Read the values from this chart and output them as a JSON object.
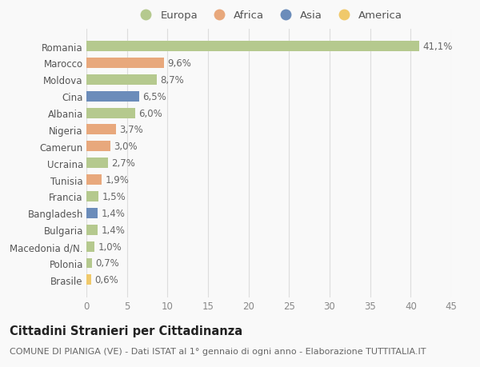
{
  "categories": [
    "Romania",
    "Marocco",
    "Moldova",
    "Cina",
    "Albania",
    "Nigeria",
    "Camerun",
    "Ucraina",
    "Tunisia",
    "Francia",
    "Bangladesh",
    "Bulgaria",
    "Macedonia d/N.",
    "Polonia",
    "Brasile"
  ],
  "values": [
    41.1,
    9.6,
    8.7,
    6.5,
    6.0,
    3.7,
    3.0,
    2.7,
    1.9,
    1.5,
    1.4,
    1.4,
    1.0,
    0.7,
    0.6
  ],
  "labels": [
    "41,1%",
    "9,6%",
    "8,7%",
    "6,5%",
    "6,0%",
    "3,7%",
    "3,0%",
    "2,7%",
    "1,9%",
    "1,5%",
    "1,4%",
    "1,4%",
    "1,0%",
    "0,7%",
    "0,6%"
  ],
  "continents": [
    "Europa",
    "Africa",
    "Europa",
    "Asia",
    "Europa",
    "Africa",
    "Africa",
    "Europa",
    "Africa",
    "Europa",
    "Asia",
    "Europa",
    "Europa",
    "Europa",
    "America"
  ],
  "colors": {
    "Europa": "#b5c98e",
    "Africa": "#e8a87c",
    "Asia": "#6b8cba",
    "America": "#f0c96b"
  },
  "xlim": [
    0,
    45
  ],
  "xticks": [
    0,
    5,
    10,
    15,
    20,
    25,
    30,
    35,
    40,
    45
  ],
  "title": "Cittadini Stranieri per Cittadinanza",
  "subtitle": "COMUNE DI PIANIGA (VE) - Dati ISTAT al 1° gennaio di ogni anno - Elaborazione TUTTITALIA.IT",
  "background_color": "#f9f9f9",
  "grid_color": "#dddddd",
  "bar_height": 0.62,
  "label_fontsize": 8.5,
  "tick_fontsize": 8.5,
  "title_fontsize": 10.5,
  "subtitle_fontsize": 8,
  "legend_fontsize": 9.5
}
